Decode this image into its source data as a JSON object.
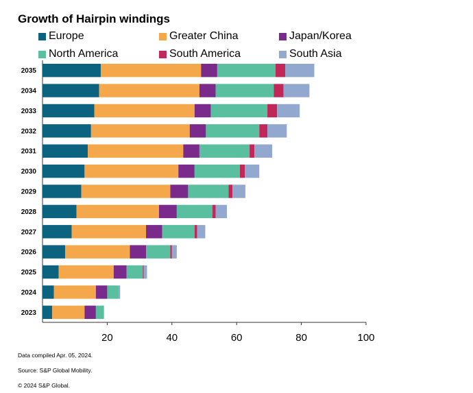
{
  "chart_data": {
    "type": "bar",
    "orientation": "horizontal",
    "stacked": true,
    "title": "Growth of Hairpin windings",
    "categories": [
      "2035",
      "2034",
      "2033",
      "2032",
      "2031",
      "2030",
      "2029",
      "2028",
      "2027",
      "2026",
      "2025",
      "2024",
      "2023"
    ],
    "series": [
      {
        "name": "Europe",
        "color": "#0b6380",
        "values": [
          18,
          17.5,
          16,
          15,
          14,
          13,
          12,
          10.5,
          9,
          7,
          5,
          3.5,
          3
        ]
      },
      {
        "name": "Greater China",
        "color": "#f5a84b",
        "values": [
          31,
          31,
          31,
          30.5,
          29.5,
          29,
          27.5,
          25.5,
          23,
          20,
          17,
          13,
          10
        ]
      },
      {
        "name": "Japan/Korea",
        "color": "#7a2a8a",
        "values": [
          5,
          5,
          5,
          5,
          5,
          5,
          5.5,
          5.5,
          5,
          5,
          4,
          3.5,
          3.5
        ]
      },
      {
        "name": "North America",
        "color": "#5abf9e",
        "values": [
          18,
          18,
          17.5,
          16.5,
          15.5,
          14,
          12.5,
          11,
          10,
          7.5,
          5,
          3.5,
          2.5
        ]
      },
      {
        "name": "South America",
        "color": "#c0285a",
        "values": [
          3,
          3,
          3,
          2.5,
          1.5,
          1.5,
          1.2,
          1,
          0.8,
          0.5,
          0.3,
          0,
          0
        ]
      },
      {
        "name": "South Asia",
        "color": "#93a8cf",
        "values": [
          9,
          8,
          7,
          6,
          5.5,
          4.5,
          4,
          3.5,
          2.5,
          1.5,
          1,
          0.5,
          0
        ]
      }
    ],
    "xlim": [
      0,
      100
    ],
    "xticks": [
      20,
      40,
      60,
      80,
      100
    ],
    "grid": false,
    "legend_position": "top"
  },
  "notes": [
    "Data compiled Apr. 05, 2024.",
    "Source: S&P Global Mobility.",
    "© 2024 S&P Global."
  ]
}
